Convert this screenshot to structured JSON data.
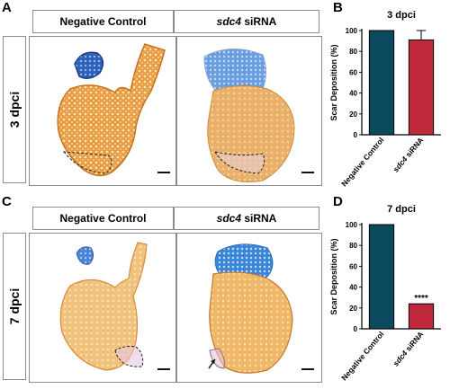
{
  "panels": {
    "A": {
      "letter": "A",
      "timepoint": "3 dpci",
      "col1": "Negative Control",
      "col2_gene": "sdc4",
      "col2_suffix": " siRNA"
    },
    "C": {
      "letter": "C",
      "timepoint": "7 dpci",
      "col1": "Negative Control",
      "col2_gene": "sdc4",
      "col2_suffix": " siRNA"
    },
    "B": {
      "letter": "B"
    },
    "D": {
      "letter": "D"
    }
  },
  "colors": {
    "control_bar": "#0b4a5e",
    "sirna_bar": "#c0283b",
    "tissue": "#e8a04a",
    "blue_stain": "#3f7fd0"
  },
  "chart_data": [
    {
      "type": "bar",
      "title": "3 dpci",
      "ylabel": "Scar Deposition (%)",
      "categories": [
        "Negative Control",
        "sdc4 siRNA"
      ],
      "values": [
        100,
        91
      ],
      "error": [
        0,
        9
      ],
      "ylim": [
        0,
        100
      ],
      "yticks": [
        0,
        20,
        40,
        60,
        80,
        100
      ],
      "significance": ""
    },
    {
      "type": "bar",
      "title": "7 dpci",
      "ylabel": "Scar Deposition (%)",
      "categories": [
        "Negative Control",
        "sdc4 siRNA"
      ],
      "values": [
        100,
        24
      ],
      "error": [
        0,
        0
      ],
      "ylim": [
        0,
        100
      ],
      "yticks": [
        0,
        20,
        40,
        60,
        80,
        100
      ],
      "significance": "****"
    }
  ]
}
